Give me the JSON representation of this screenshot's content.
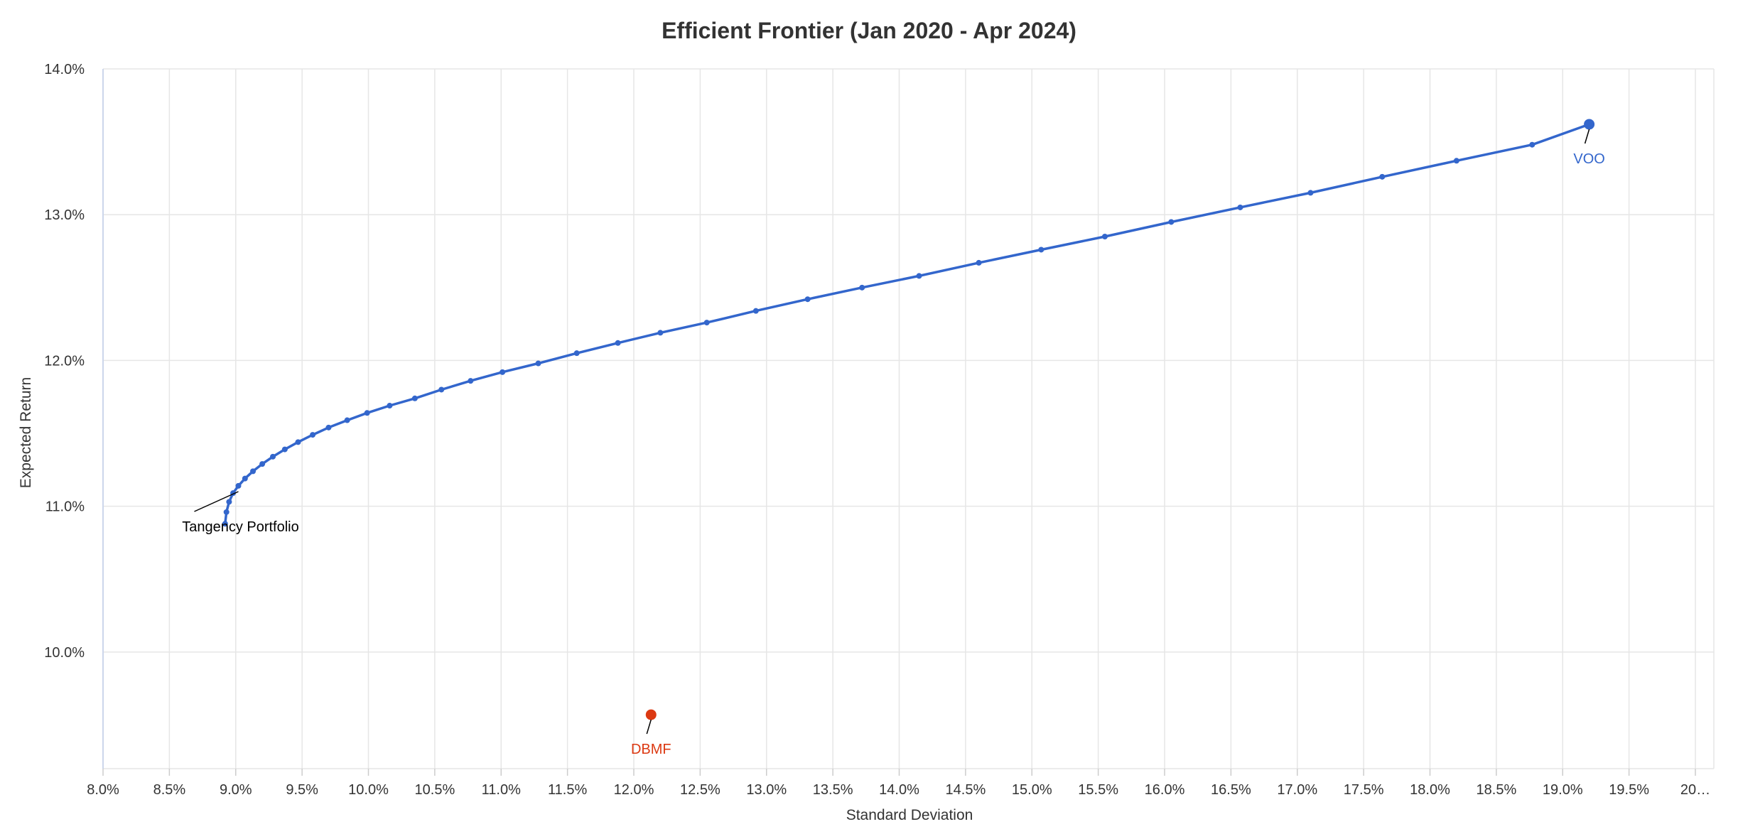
{
  "chart_data": {
    "type": "scatter",
    "title": "Efficient Frontier (Jan 2020 - Apr 2024)",
    "xlabel": "Standard Deviation",
    "ylabel": "Expected Return",
    "xlim": [
      8.0,
      20.0
    ],
    "ylim": [
      9.2,
      14.0
    ],
    "x_ticks": [
      "8.0%",
      "8.5%",
      "9.0%",
      "9.5%",
      "10.0%",
      "10.5%",
      "11.0%",
      "11.5%",
      "12.0%",
      "12.5%",
      "13.0%",
      "13.5%",
      "14.0%",
      "14.5%",
      "15.0%",
      "15.5%",
      "16.0%",
      "16.5%",
      "17.0%",
      "17.5%",
      "18.0%",
      "18.5%",
      "19.0%",
      "19.5%",
      "20…"
    ],
    "y_ticks": [
      "10.0%",
      "11.0%",
      "12.0%",
      "13.0%",
      "14.0%"
    ],
    "grid": true,
    "frontier_color": "#3366cc",
    "frontier": {
      "x": [
        8.92,
        8.93,
        8.95,
        8.98,
        9.02,
        9.07,
        9.13,
        9.2,
        9.28,
        9.37,
        9.47,
        9.58,
        9.7,
        9.84,
        9.99,
        10.16,
        10.35,
        10.55,
        10.77,
        11.01,
        11.28,
        11.57,
        11.88,
        12.2,
        12.55,
        12.92,
        13.31,
        13.72,
        14.15,
        14.6,
        15.07,
        15.55,
        16.05,
        16.57,
        17.1,
        17.64,
        18.2,
        18.77,
        19.2
      ],
      "y": [
        10.88,
        10.96,
        11.03,
        11.09,
        11.14,
        11.19,
        11.24,
        11.29,
        11.34,
        11.39,
        11.44,
        11.49,
        11.54,
        11.59,
        11.64,
        11.69,
        11.74,
        11.8,
        11.86,
        11.92,
        11.98,
        12.05,
        12.12,
        12.19,
        12.26,
        12.34,
        12.42,
        12.5,
        12.58,
        12.67,
        12.76,
        12.85,
        12.95,
        13.05,
        13.15,
        13.26,
        13.37,
        13.48,
        13.62
      ]
    },
    "points": [
      {
        "name": "VOO",
        "x": 19.2,
        "y": 13.62,
        "color": "#3366cc"
      },
      {
        "name": "DBMF",
        "x": 12.13,
        "y": 9.57,
        "color": "#dc3912"
      }
    ],
    "annotations": [
      {
        "text": "Tangency Portfolio",
        "x": 9.02,
        "y": 11.12,
        "color": "#000000"
      }
    ]
  }
}
